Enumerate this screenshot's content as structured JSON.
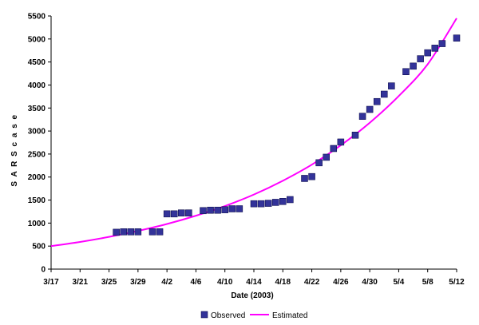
{
  "chart_data": {
    "type": "scatter",
    "title": "",
    "xlabel": "Date (2003)",
    "ylabel": "S A R S  c a s e",
    "x_tick_labels": [
      "3/17",
      "3/21",
      "3/25",
      "3/29",
      "4/2",
      "4/6",
      "4/10",
      "4/14",
      "4/18",
      "4/22",
      "4/26",
      "4/30",
      "5/4",
      "5/8",
      "5/12"
    ],
    "y_tick_labels": [
      "0",
      "500",
      "1000",
      "1500",
      "2000",
      "2500",
      "3000",
      "3500",
      "4000",
      "4500",
      "5000",
      "5500"
    ],
    "xlim": [
      "2003-03-17",
      "2003-05-12"
    ],
    "ylim": [
      0,
      5500
    ],
    "grid": false,
    "legend_position": "bottom",
    "series": [
      {
        "name": "Observed",
        "kind": "markers",
        "marker": "square",
        "color": "#333399",
        "points": [
          [
            "2003-03-26",
            800
          ],
          [
            "2003-03-27",
            810
          ],
          [
            "2003-03-28",
            810
          ],
          [
            "2003-03-29",
            810
          ],
          [
            "2003-03-31",
            810
          ],
          [
            "2003-04-01",
            810
          ],
          [
            "2003-04-02",
            1200
          ],
          [
            "2003-04-03",
            1200
          ],
          [
            "2003-04-04",
            1220
          ],
          [
            "2003-04-05",
            1220
          ],
          [
            "2003-04-07",
            1270
          ],
          [
            "2003-04-08",
            1280
          ],
          [
            "2003-04-09",
            1280
          ],
          [
            "2003-04-10",
            1290
          ],
          [
            "2003-04-11",
            1310
          ],
          [
            "2003-04-12",
            1310
          ],
          [
            "2003-04-14",
            1420
          ],
          [
            "2003-04-15",
            1420
          ],
          [
            "2003-04-16",
            1430
          ],
          [
            "2003-04-17",
            1450
          ],
          [
            "2003-04-18",
            1470
          ],
          [
            "2003-04-19",
            1510
          ],
          [
            "2003-04-21",
            1970
          ],
          [
            "2003-04-22",
            2010
          ],
          [
            "2003-04-23",
            2310
          ],
          [
            "2003-04-24",
            2430
          ],
          [
            "2003-04-25",
            2620
          ],
          [
            "2003-04-26",
            2760
          ],
          [
            "2003-04-28",
            2910
          ],
          [
            "2003-04-29",
            3320
          ],
          [
            "2003-04-30",
            3470
          ],
          [
            "2003-05-01",
            3640
          ],
          [
            "2003-05-02",
            3800
          ],
          [
            "2003-05-03",
            3980
          ],
          [
            "2003-05-05",
            4290
          ],
          [
            "2003-05-06",
            4410
          ],
          [
            "2003-05-07",
            4570
          ],
          [
            "2003-05-08",
            4700
          ],
          [
            "2003-05-09",
            4800
          ],
          [
            "2003-05-10",
            4900
          ],
          [
            "2003-05-12",
            5020
          ]
        ]
      },
      {
        "name": "Estimated",
        "kind": "line",
        "color": "#FF00FF",
        "points": [
          [
            "2003-03-17",
            500
          ],
          [
            "2003-03-21",
            590
          ],
          [
            "2003-03-25",
            700
          ],
          [
            "2003-03-29",
            830
          ],
          [
            "2003-04-02",
            980
          ],
          [
            "2003-04-06",
            1160
          ],
          [
            "2003-04-10",
            1370
          ],
          [
            "2003-04-14",
            1620
          ],
          [
            "2003-04-18",
            1920
          ],
          [
            "2003-04-22",
            2270
          ],
          [
            "2003-04-26",
            2690
          ],
          [
            "2003-04-30",
            3180
          ],
          [
            "2003-05-04",
            3760
          ],
          [
            "2003-05-08",
            4450
          ],
          [
            "2003-05-12",
            5450
          ]
        ]
      }
    ]
  }
}
